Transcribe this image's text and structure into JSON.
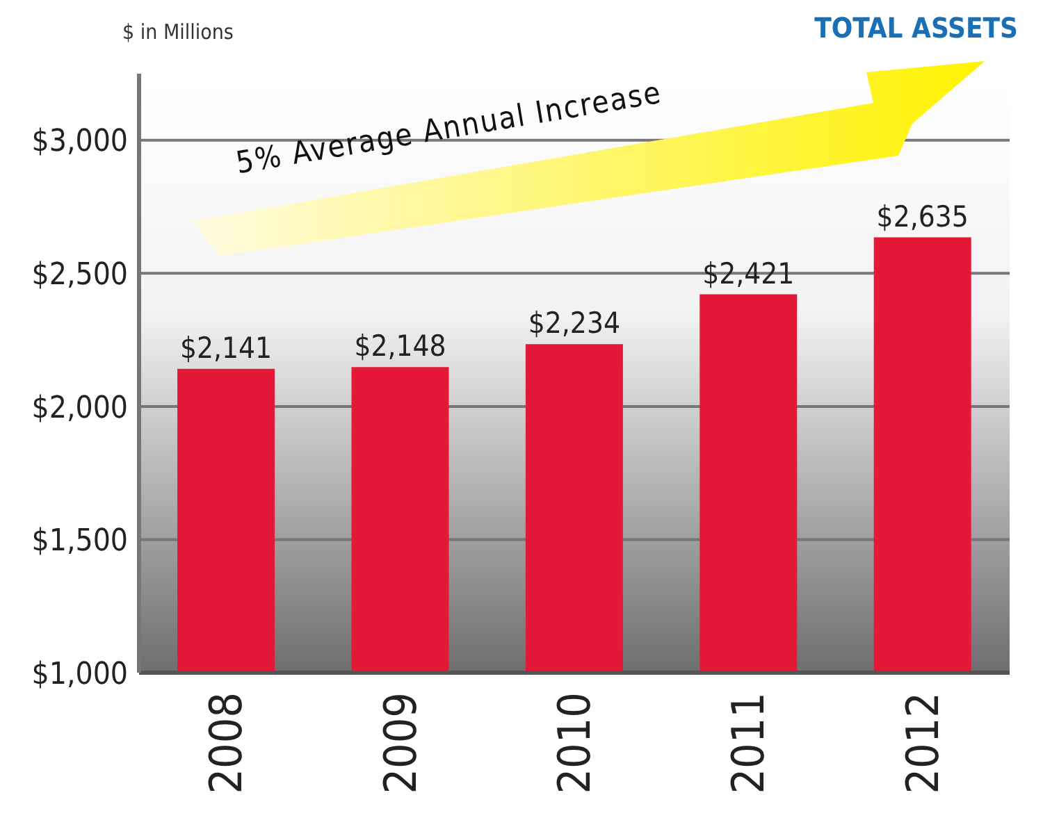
{
  "chart_data": {
    "type": "bar",
    "title": "TOTAL ASSETS",
    "ylabel": "$ in Millions",
    "categories": [
      "2008",
      "2009",
      "2010",
      "2011",
      "2012"
    ],
    "values": [
      2141,
      2148,
      2234,
      2421,
      2635
    ],
    "value_labels": [
      "$2,141",
      "$2,148",
      "$2,234",
      "$2,421",
      "$2,635"
    ],
    "color": "#e31937",
    "ylim": [
      1000,
      3250
    ],
    "yticks": [
      {
        "value": 1000,
        "label": "$1,000"
      },
      {
        "value": 1500,
        "label": "$1,500"
      },
      {
        "value": 2000,
        "label": "$2,000"
      },
      {
        "value": 2500,
        "label": "$2,500"
      },
      {
        "value": 3000,
        "label": "$3,000"
      }
    ],
    "grid": "y",
    "annotations": [
      "5% Average Annual Increase"
    ]
  }
}
